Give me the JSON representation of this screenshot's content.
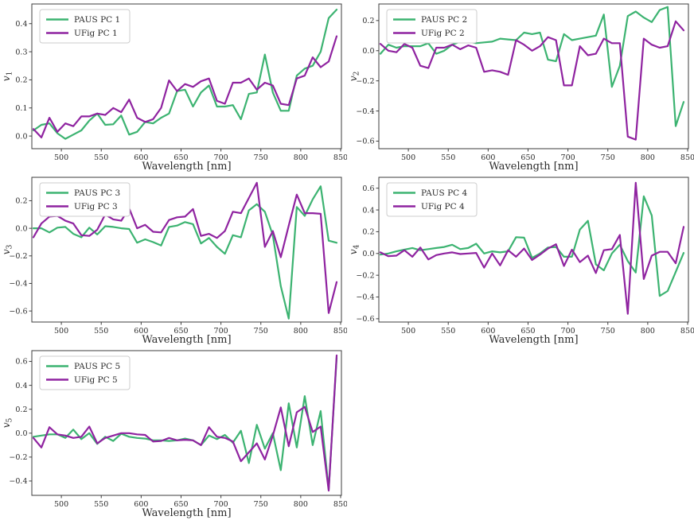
{
  "figure": {
    "background": "#ffffff",
    "text_color": "#2b2b2b",
    "spine_color": "#3d3d3d",
    "tick_color": "#3d3d3d",
    "legend_border": "#cccccc",
    "legend_background": "#ffffff",
    "paus_color": "#3cb371",
    "ufig_color": "#8f23a0"
  },
  "chart_data": [
    {
      "type": "line",
      "title": "",
      "xlabel": "Wavelength [nm]",
      "ylabel_base": "v",
      "ylabel_sub": "1",
      "grid": false,
      "legend_position": "upper left",
      "legend": [
        "PAUS PC 1",
        "UFig PC 1"
      ],
      "xlim": [
        463,
        851
      ],
      "ylim": [
        -0.045,
        0.47
      ],
      "xticks": [
        500,
        550,
        600,
        650,
        700,
        750,
        800,
        850
      ],
      "yticks": [
        0.0,
        0.1,
        0.2,
        0.3,
        0.4
      ],
      "x": [
        465,
        475,
        485,
        495,
        505,
        515,
        525,
        535,
        545,
        555,
        565,
        575,
        585,
        595,
        605,
        615,
        625,
        635,
        645,
        655,
        665,
        675,
        685,
        695,
        705,
        715,
        725,
        735,
        745,
        755,
        765,
        775,
        785,
        795,
        805,
        815,
        825,
        835,
        845
      ],
      "series": [
        {
          "name": "PAUS PC 1",
          "color": "#3cb371",
          "values": [
            0.02,
            0.04,
            0.045,
            0.01,
            -0.01,
            0.005,
            0.02,
            0.055,
            0.08,
            0.04,
            0.042,
            0.073,
            0.005,
            0.015,
            0.05,
            0.045,
            0.065,
            0.08,
            0.16,
            0.165,
            0.105,
            0.155,
            0.18,
            0.105,
            0.105,
            0.11,
            0.06,
            0.15,
            0.155,
            0.29,
            0.155,
            0.09,
            0.09,
            0.215,
            0.24,
            0.25,
            0.3,
            0.42,
            0.45
          ]
        },
        {
          "name": "UFig PC 1",
          "color": "#8f23a0",
          "values": [
            0.025,
            -0.005,
            0.065,
            0.015,
            0.045,
            0.035,
            0.07,
            0.07,
            0.08,
            0.075,
            0.1,
            0.085,
            0.13,
            0.065,
            0.05,
            0.06,
            0.1,
            0.198,
            0.16,
            0.185,
            0.175,
            0.195,
            0.205,
            0.125,
            0.115,
            0.19,
            0.19,
            0.205,
            0.165,
            0.19,
            0.18,
            0.115,
            0.11,
            0.205,
            0.215,
            0.28,
            0.245,
            0.265,
            0.355
          ]
        }
      ]
    },
    {
      "type": "line",
      "title": "",
      "xlabel": "Wavelength [nm]",
      "ylabel_base": "v",
      "ylabel_sub": "2",
      "grid": false,
      "legend_position": "upper left",
      "legend": [
        "PAUS PC 2",
        "UFig PC 2"
      ],
      "xlim": [
        463,
        851
      ],
      "ylim": [
        -0.65,
        0.31
      ],
      "xticks": [
        500,
        550,
        600,
        650,
        700,
        750,
        800,
        850
      ],
      "yticks": [
        -0.6,
        -0.4,
        -0.2,
        0.0,
        0.2
      ],
      "x": [
        465,
        475,
        485,
        495,
        505,
        515,
        525,
        535,
        545,
        555,
        565,
        575,
        585,
        595,
        605,
        615,
        625,
        635,
        645,
        655,
        665,
        675,
        685,
        695,
        705,
        715,
        725,
        735,
        745,
        755,
        765,
        775,
        785,
        795,
        805,
        815,
        825,
        835,
        845
      ],
      "series": [
        {
          "name": "PAUS PC 2",
          "color": "#3cb371",
          "values": [
            -0.02,
            0.04,
            0.02,
            0.03,
            0.03,
            0.03,
            0.05,
            -0.02,
            0.0,
            0.04,
            0.06,
            0.06,
            0.05,
            0.055,
            0.06,
            0.08,
            0.075,
            0.07,
            0.12,
            0.11,
            0.12,
            -0.06,
            -0.07,
            0.11,
            0.07,
            0.08,
            0.09,
            0.1,
            0.24,
            -0.24,
            -0.1,
            0.23,
            0.26,
            0.22,
            0.19,
            0.27,
            0.29,
            -0.5,
            -0.34
          ]
        },
        {
          "name": "UFig PC 2",
          "color": "#8f23a0",
          "values": [
            0.045,
            0.0,
            -0.01,
            0.045,
            0.02,
            -0.1,
            -0.115,
            0.02,
            0.02,
            0.04,
            0.01,
            0.035,
            0.02,
            -0.14,
            -0.13,
            -0.14,
            -0.16,
            0.07,
            0.04,
            0.0,
            0.03,
            0.09,
            0.07,
            -0.23,
            -0.23,
            0.03,
            -0.03,
            -0.02,
            0.08,
            0.05,
            0.05,
            -0.57,
            -0.59,
            0.08,
            0.04,
            0.02,
            0.03,
            0.195,
            0.135
          ]
        }
      ]
    },
    {
      "type": "line",
      "title": "",
      "xlabel": "Wavelength [nm]",
      "ylabel_base": "v",
      "ylabel_sub": "3",
      "grid": false,
      "legend_position": "upper left",
      "legend": [
        "PAUS PC 3",
        "UFig PC 3"
      ],
      "xlim": [
        463,
        851
      ],
      "ylim": [
        -0.68,
        0.37
      ],
      "xticks": [
        500,
        550,
        600,
        650,
        700,
        750,
        800,
        850
      ],
      "yticks": [
        -0.6,
        -0.4,
        -0.2,
        0.0,
        0.2
      ],
      "x": [
        465,
        475,
        485,
        495,
        505,
        515,
        525,
        535,
        545,
        555,
        565,
        575,
        585,
        595,
        605,
        615,
        625,
        635,
        645,
        655,
        665,
        675,
        685,
        695,
        705,
        715,
        725,
        735,
        745,
        755,
        765,
        775,
        785,
        795,
        805,
        815,
        825,
        835,
        845
      ],
      "series": [
        {
          "name": "PAUS PC 3",
          "color": "#3cb371",
          "values": [
            0.0,
            0.0,
            -0.03,
            0.005,
            0.01,
            -0.04,
            -0.065,
            0.005,
            -0.045,
            0.015,
            0.01,
            0.0,
            -0.005,
            -0.105,
            -0.08,
            -0.1,
            -0.125,
            0.01,
            0.02,
            0.045,
            0.03,
            -0.11,
            -0.07,
            -0.135,
            -0.185,
            -0.05,
            -0.065,
            0.13,
            0.175,
            0.12,
            -0.05,
            -0.42,
            -0.655,
            0.155,
            0.09,
            0.21,
            0.305,
            -0.09,
            -0.105
          ]
        },
        {
          "name": "UFig PC 3",
          "color": "#8f23a0",
          "values": [
            -0.065,
            0.035,
            0.085,
            0.09,
            0.055,
            0.035,
            -0.05,
            -0.055,
            -0.01,
            0.1,
            0.065,
            0.055,
            0.145,
            0.0,
            0.025,
            -0.025,
            -0.03,
            0.06,
            0.08,
            0.085,
            0.14,
            -0.055,
            -0.04,
            -0.07,
            -0.02,
            0.12,
            0.11,
            0.22,
            0.33,
            -0.135,
            -0.02,
            -0.21,
            0.02,
            0.245,
            0.11,
            0.11,
            0.105,
            -0.615,
            -0.39
          ]
        }
      ]
    },
    {
      "type": "line",
      "title": "",
      "xlabel": "Wavelength [nm]",
      "ylabel_base": "v",
      "ylabel_sub": "4",
      "grid": false,
      "legend_position": "upper left",
      "legend": [
        "PAUS PC 4",
        "UFig PC 4"
      ],
      "xlim": [
        463,
        851
      ],
      "ylim": [
        -0.63,
        0.7
      ],
      "xticks": [
        500,
        550,
        600,
        650,
        700,
        750,
        800,
        850
      ],
      "yticks": [
        -0.6,
        -0.4,
        -0.2,
        0.0,
        0.2,
        0.4,
        0.6
      ],
      "x": [
        465,
        475,
        485,
        495,
        505,
        515,
        525,
        535,
        545,
        555,
        565,
        575,
        585,
        595,
        605,
        615,
        625,
        635,
        645,
        655,
        665,
        675,
        685,
        695,
        705,
        715,
        725,
        735,
        745,
        755,
        765,
        775,
        785,
        795,
        805,
        815,
        825,
        835,
        845
      ],
      "series": [
        {
          "name": "PAUS PC 4",
          "color": "#3cb371",
          "values": [
            -0.01,
            0.0,
            0.02,
            0.035,
            0.05,
            0.03,
            0.04,
            0.05,
            0.06,
            0.08,
            0.04,
            0.05,
            0.09,
            0.0,
            0.02,
            0.01,
            0.02,
            0.15,
            0.145,
            -0.04,
            0.0,
            0.055,
            0.06,
            -0.03,
            -0.03,
            0.22,
            0.3,
            -0.1,
            -0.155,
            0.0,
            0.08,
            -0.07,
            -0.175,
            0.525,
            0.35,
            -0.39,
            -0.345,
            -0.17,
            0.005
          ]
        },
        {
          "name": "UFig PC 4",
          "color": "#8f23a0",
          "values": [
            0.01,
            -0.025,
            -0.02,
            0.03,
            -0.03,
            0.055,
            -0.055,
            -0.015,
            0.0,
            0.01,
            -0.005,
            0.0,
            0.005,
            -0.13,
            0.0,
            -0.11,
            0.03,
            -0.03,
            0.045,
            -0.06,
            -0.01,
            0.045,
            0.085,
            -0.115,
            0.035,
            -0.08,
            -0.02,
            -0.18,
            0.03,
            0.04,
            0.17,
            -0.555,
            0.65,
            -0.235,
            -0.02,
            0.015,
            0.015,
            -0.09,
            0.245
          ]
        }
      ]
    },
    {
      "type": "line",
      "title": "",
      "xlabel": "Wavelength [nm]",
      "ylabel_base": "v",
      "ylabel_sub": "5",
      "grid": false,
      "legend_position": "upper left",
      "legend": [
        "PAUS PC 5",
        "UFig PC 5"
      ],
      "xlim": [
        463,
        851
      ],
      "ylim": [
        -0.52,
        0.69
      ],
      "xticks": [
        500,
        550,
        600,
        650,
        700,
        750,
        800,
        850
      ],
      "yticks": [
        -0.4,
        -0.2,
        0.0,
        0.2,
        0.4,
        0.6
      ],
      "x": [
        465,
        475,
        485,
        495,
        505,
        515,
        525,
        535,
        545,
        555,
        565,
        575,
        585,
        595,
        605,
        615,
        625,
        635,
        645,
        655,
        665,
        675,
        685,
        695,
        705,
        715,
        725,
        735,
        745,
        755,
        765,
        775,
        785,
        795,
        805,
        815,
        825,
        835,
        845
      ],
      "series": [
        {
          "name": "PAUS PC 5",
          "color": "#3cb371",
          "values": [
            -0.03,
            -0.02,
            -0.01,
            -0.01,
            -0.04,
            0.03,
            -0.05,
            0.0,
            -0.09,
            -0.03,
            -0.065,
            -0.005,
            -0.03,
            -0.04,
            -0.045,
            -0.06,
            -0.06,
            -0.065,
            -0.06,
            -0.045,
            -0.06,
            -0.1,
            -0.02,
            -0.05,
            -0.015,
            -0.08,
            0.02,
            -0.25,
            0.07,
            -0.13,
            0.0,
            -0.31,
            0.25,
            -0.12,
            0.31,
            -0.1,
            0.185,
            -0.47,
            0.63
          ]
        },
        {
          "name": "UFig PC 5",
          "color": "#8f23a0",
          "values": [
            -0.04,
            -0.12,
            0.05,
            -0.01,
            -0.02,
            -0.04,
            -0.03,
            0.055,
            -0.085,
            -0.04,
            -0.02,
            0.0,
            0.0,
            -0.01,
            -0.015,
            -0.07,
            -0.065,
            -0.04,
            -0.06,
            -0.055,
            -0.06,
            -0.1,
            0.05,
            -0.03,
            -0.04,
            -0.07,
            -0.235,
            -0.16,
            -0.085,
            -0.22,
            -0.02,
            0.215,
            -0.11,
            0.175,
            0.22,
            0.01,
            0.055,
            -0.48,
            0.65
          ]
        }
      ]
    }
  ]
}
